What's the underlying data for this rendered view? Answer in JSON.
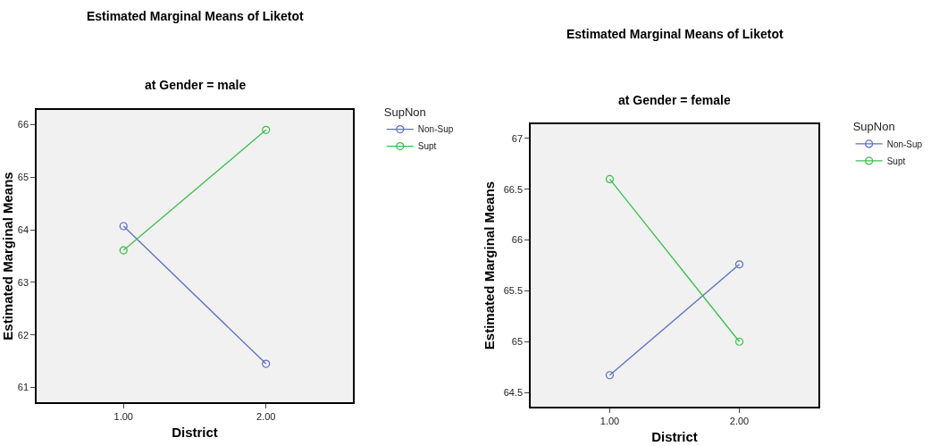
{
  "chart_data": [
    {
      "type": "line",
      "title": "Estimated Marginal Means of Liketot",
      "subtitle": "at Gender = male",
      "xlabel": "District",
      "ylabel": "Estimated Marginal Means",
      "legend_title": "SupNon",
      "categories": [
        "1.00",
        "2.00"
      ],
      "series": [
        {
          "name": "Non-Sup",
          "color": "#5b6fc4",
          "values": [
            64.07,
            61.45
          ]
        },
        {
          "name": "Supt",
          "color": "#3cbf4a",
          "values": [
            63.61,
            65.9
          ]
        }
      ],
      "ylim": [
        60.72,
        66.28
      ],
      "yticks": [
        61,
        62,
        63,
        64,
        65,
        66
      ],
      "grid": false,
      "legend": "top right",
      "marker": "circle",
      "line_style": "solid"
    },
    {
      "type": "line",
      "title": "Estimated Marginal Means of Liketot",
      "subtitle": "at Gender = female",
      "xlabel": "District",
      "ylabel": "Estimated Marginal Means",
      "legend_title": "SupNon",
      "categories": [
        "1.00",
        "2.00"
      ],
      "series": [
        {
          "name": "Non-Sup",
          "color": "#5b6fc4",
          "values": [
            64.67,
            65.76
          ]
        },
        {
          "name": "Supt",
          "color": "#3cbf4a",
          "values": [
            66.6,
            65.0
          ]
        }
      ],
      "ylim": [
        64.36,
        67.14
      ],
      "yticks": [
        64.5,
        65,
        65.5,
        66,
        66.5,
        67
      ],
      "grid": false,
      "legend": "top right",
      "marker": "circle",
      "line_style": "solid"
    }
  ]
}
